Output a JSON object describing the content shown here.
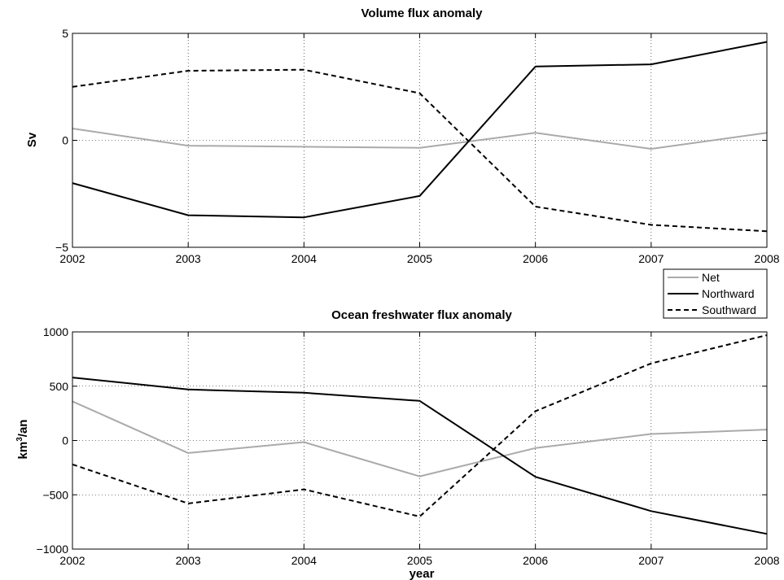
{
  "chart_data": [
    {
      "type": "line",
      "title": "Volume flux anomaly",
      "xlabel": "",
      "ylabel": "Sv",
      "x": [
        2002,
        2003,
        2004,
        2005,
        2006,
        2007,
        2008
      ],
      "xlim": [
        2002,
        2008
      ],
      "ylim": [
        -5,
        5
      ],
      "xticks": [
        "2002",
        "2003",
        "2004",
        "2005",
        "2006",
        "2007",
        "2008"
      ],
      "yticks": [
        {
          "value": 5,
          "label": "5"
        },
        {
          "value": 0,
          "label": "0"
        },
        {
          "value": -5,
          "label": "−5"
        }
      ],
      "grid": true,
      "series": [
        {
          "name": "Net",
          "color": "#aaaaaa",
          "dash": "solid",
          "values": [
            0.55,
            -0.25,
            -0.3,
            -0.35,
            0.35,
            -0.4,
            0.35
          ]
        },
        {
          "name": "Northward",
          "color": "#000000",
          "dash": "solid",
          "values": [
            -2.0,
            -3.5,
            -3.6,
            -2.6,
            3.45,
            3.55,
            4.6
          ]
        },
        {
          "name": "Southward",
          "color": "#000000",
          "dash": "dashed",
          "values": [
            2.5,
            3.25,
            3.3,
            2.2,
            -3.1,
            -3.95,
            -4.25
          ]
        }
      ]
    },
    {
      "type": "line",
      "title": "Ocean freshwater flux anomaly",
      "xlabel": "year",
      "ylabel": "km³/an",
      "ylabel_base": "km",
      "ylabel_sup": "3",
      "ylabel_rest": "/an",
      "x": [
        2002,
        2003,
        2004,
        2005,
        2006,
        2007,
        2008
      ],
      "xlim": [
        2002,
        2008
      ],
      "ylim": [
        -1000,
        1000
      ],
      "xticks": [
        "2002",
        "2003",
        "2004",
        "2005",
        "2006",
        "2007",
        "2008"
      ],
      "yticks": [
        {
          "value": 1000,
          "label": "1000"
        },
        {
          "value": 500,
          "label": "500"
        },
        {
          "value": 0,
          "label": "0"
        },
        {
          "value": -500,
          "label": "−500"
        },
        {
          "value": -1000,
          "label": "−1000"
        }
      ],
      "grid": true,
      "series": [
        {
          "name": "Net",
          "color": "#aaaaaa",
          "dash": "solid",
          "values": [
            360,
            -115,
            -15,
            -330,
            -70,
            60,
            100
          ]
        },
        {
          "name": "Northward",
          "color": "#000000",
          "dash": "solid",
          "values": [
            580,
            470,
            440,
            365,
            -335,
            -650,
            -860
          ]
        },
        {
          "name": "Southward",
          "color": "#000000",
          "dash": "dashed",
          "values": [
            -220,
            -580,
            -450,
            -700,
            270,
            710,
            970
          ]
        }
      ]
    }
  ],
  "legend": {
    "placement": "between panels, right",
    "entries": [
      "Net",
      "Northward",
      "Southward"
    ]
  }
}
